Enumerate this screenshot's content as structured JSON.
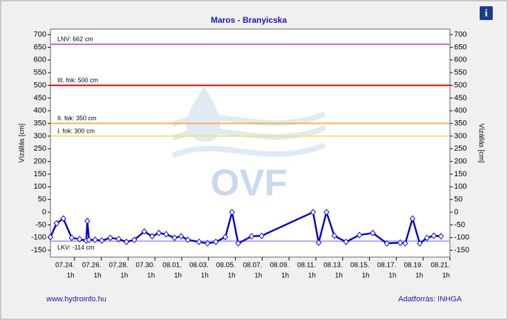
{
  "chart_data": {
    "type": "line",
    "title": "Maros - Branyicska",
    "ylabel": "Vízállás [cm]",
    "y2label": "Vízállás [cm]",
    "watermark": "OVF",
    "footer_left": "www.hydroinfo.hu",
    "footer_right": "Adatforrás: INHGA",
    "ylim": [
      -177,
      722
    ],
    "yticks": [
      -150,
      -100,
      -50,
      0,
      50,
      100,
      150,
      200,
      250,
      300,
      350,
      400,
      450,
      500,
      550,
      600,
      650,
      700
    ],
    "xlim": [
      "07.22. 6h",
      "08.21. 1h"
    ],
    "xticks": [
      {
        "label": "07.24.",
        "hour": "1h"
      },
      {
        "label": "07.26.",
        "hour": "1h"
      },
      {
        "label": "07.28.",
        "hour": "1h"
      },
      {
        "label": "07.30.",
        "hour": "1h"
      },
      {
        "label": "08.01.",
        "hour": "1h"
      },
      {
        "label": "08.03.",
        "hour": "1h"
      },
      {
        "label": "08.05.",
        "hour": "1h"
      },
      {
        "label": "08.07.",
        "hour": "1h"
      },
      {
        "label": "08.09.",
        "hour": "1h"
      },
      {
        "label": "08.11.",
        "hour": "1h"
      },
      {
        "label": "08.13.",
        "hour": "1h"
      },
      {
        "label": "08.15.",
        "hour": "1h"
      },
      {
        "label": "08.17.",
        "hour": "1h"
      },
      {
        "label": "08.19.",
        "hour": "1h"
      },
      {
        "label": "08.21.",
        "hour": "1h"
      }
    ],
    "thresholds": [
      {
        "label": "LNV: 662 cm",
        "value": 662,
        "color": "#cc66cc"
      },
      {
        "label": "III. fok: 500 cm",
        "value": 500,
        "color": "#cc0000"
      },
      {
        "label": "II. fok: 350 cm",
        "value": 350,
        "color": "#f5b041"
      },
      {
        "label": "I. fok: 300 cm",
        "value": 300,
        "color": "#f2e66a"
      },
      {
        "label": "LKV: -114 cm",
        "value": -114,
        "color": "#a8a8e8"
      }
    ],
    "series": [
      {
        "name": "Vízállás",
        "color": "#0000cc",
        "x": [
          "07.22. 6h",
          "07.22. 17h",
          "07.23. 5h",
          "07.23. 20h",
          "07.24. 10h",
          "07.24. 22h",
          "07.25. 0h",
          "07.25. 3h",
          "07.25. 14h",
          "07.26. 2h",
          "07.26. 17h",
          "07.27. 8h",
          "07.27. 22h",
          "07.28. 12h",
          "07.29. 6h",
          "07.29. 20h",
          "07.30. 8h",
          "07.30. 21h",
          "07.31. 12h",
          "08.01. 0h",
          "08.01. 12h",
          "08.02. 8h",
          "08.02. 23h",
          "08.03. 14h",
          "08.04. 7h",
          "08.04. 19h",
          "08.05. 6h",
          "08.06. 6h",
          "08.07. 0h",
          "08.10. 20h",
          "08.11. 6h",
          "08.11. 20h",
          "08.12. 10h",
          "08.13. 7h",
          "08.14. 7h",
          "08.15. 7h",
          "08.16. 8h",
          "08.17. 8h",
          "08.17. 17h",
          "08.18. 6h",
          "08.18. 19h",
          "08.19. 8h",
          "08.19. 20h",
          "08.20. 9h"
        ],
        "values": [
          -98,
          -44,
          -25,
          -101,
          -106,
          -112,
          -35,
          -109,
          -109,
          -112,
          -101,
          -106,
          -117,
          -109,
          -76,
          -95,
          -82,
          -87,
          -101,
          -95,
          -109,
          -117,
          -123,
          -117,
          -98,
          0,
          -123,
          -95,
          -93,
          0,
          -120,
          0,
          -93,
          -117,
          -90,
          -82,
          -123,
          -120,
          -123,
          -25,
          -123,
          -101,
          -93,
          -95
        ]
      }
    ]
  }
}
